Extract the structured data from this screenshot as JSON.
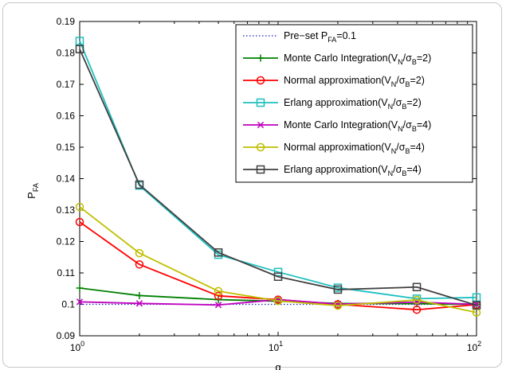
{
  "chart_data": {
    "type": "line",
    "x_scale": "log",
    "y_scale": "linear",
    "xlabel": "q",
    "ylabel_main": "P",
    "ylabel_sub": "FA",
    "xlim": [
      1,
      100
    ],
    "ylim": [
      0.09,
      0.19
    ],
    "x_ticks": [
      {
        "value": 1,
        "base": "10",
        "exp": "0"
      },
      {
        "value": 10,
        "base": "10",
        "exp": "1"
      },
      {
        "value": 100,
        "base": "10",
        "exp": "2"
      }
    ],
    "y_ticks": [
      {
        "value": 0.09,
        "label": "0.09"
      },
      {
        "value": 0.1,
        "label": "0.1"
      },
      {
        "value": 0.11,
        "label": "0.11"
      },
      {
        "value": 0.12,
        "label": "0.12"
      },
      {
        "value": 0.13,
        "label": "0.13"
      },
      {
        "value": 0.14,
        "label": "0.14"
      },
      {
        "value": 0.15,
        "label": "0.15"
      },
      {
        "value": 0.16,
        "label": "0.16"
      },
      {
        "value": 0.17,
        "label": "0.17"
      },
      {
        "value": 0.18,
        "label": "0.18"
      },
      {
        "value": 0.19,
        "label": "0.19"
      }
    ],
    "legend_position": "top-right",
    "grid": false,
    "series": [
      {
        "legend": [
          {
            "t": "Pre−set P"
          },
          {
            "t": "FA",
            "sub": true
          },
          {
            "t": "=0.1"
          }
        ],
        "color": "#1f1fb4",
        "dash": "dotted",
        "marker": "none",
        "x": [
          1,
          100
        ],
        "y": [
          0.1,
          0.1
        ]
      },
      {
        "legend": [
          {
            "t": "Monte Carlo Integration(V"
          },
          {
            "t": "N",
            "sub": true
          },
          {
            "t": "/σ"
          },
          {
            "t": "B",
            "sub": true
          },
          {
            "t": "=2)"
          }
        ],
        "color": "#008000",
        "dash": "solid",
        "marker": "plus",
        "x": [
          1,
          2,
          5,
          10,
          20,
          50,
          100
        ],
        "y": [
          0.1052,
          0.1028,
          0.1015,
          0.101,
          0.1003,
          0.1002,
          0.1
        ]
      },
      {
        "legend": [
          {
            "t": "Normal approximation(V"
          },
          {
            "t": "N",
            "sub": true
          },
          {
            "t": "/σ"
          },
          {
            "t": "B",
            "sub": true
          },
          {
            "t": "=2)"
          }
        ],
        "color": "#ff0000",
        "dash": "solid",
        "marker": "circle",
        "x": [
          1,
          2,
          5,
          10,
          20,
          50,
          100
        ],
        "y": [
          0.1262,
          0.1127,
          0.1027,
          0.1015,
          0.1,
          0.0983,
          0.0999
        ]
      },
      {
        "legend": [
          {
            "t": "Erlang approximation(V"
          },
          {
            "t": "N",
            "sub": true
          },
          {
            "t": "/σ"
          },
          {
            "t": "B",
            "sub": true
          },
          {
            "t": "=2)"
          }
        ],
        "color": "#1fbfbf",
        "dash": "solid",
        "marker": "square",
        "x": [
          1,
          2,
          5,
          10,
          20,
          50,
          100
        ],
        "y": [
          0.1838,
          0.1378,
          0.1158,
          0.1103,
          0.1053,
          0.1018,
          0.1022
        ]
      },
      {
        "legend": [
          {
            "t": "Monte Carlo Integration(V"
          },
          {
            "t": "N",
            "sub": true
          },
          {
            "t": "/σ"
          },
          {
            "t": "B",
            "sub": true
          },
          {
            "t": "=4)"
          }
        ],
        "color": "#bf00bf",
        "dash": "solid",
        "marker": "x",
        "x": [
          1,
          2,
          5,
          10,
          20,
          50,
          100
        ],
        "y": [
          0.1008,
          0.1003,
          0.0998,
          0.1015,
          0.1001,
          0.1007,
          0.1
        ]
      },
      {
        "legend": [
          {
            "t": "Normal approximation(V"
          },
          {
            "t": "N",
            "sub": true
          },
          {
            "t": "/σ"
          },
          {
            "t": "B",
            "sub": true
          },
          {
            "t": "=4)"
          }
        ],
        "color": "#bfbf00",
        "dash": "solid",
        "marker": "circle",
        "x": [
          1,
          2,
          5,
          10,
          20,
          50,
          100
        ],
        "y": [
          0.131,
          0.1163,
          0.1042,
          0.1011,
          0.0996,
          0.1014,
          0.0974
        ]
      },
      {
        "legend": [
          {
            "t": "Erlang approximation(V"
          },
          {
            "t": "N",
            "sub": true
          },
          {
            "t": "/σ"
          },
          {
            "t": "B",
            "sub": true
          },
          {
            "t": "=4)"
          }
        ],
        "color": "#404040",
        "dash": "solid",
        "marker": "square",
        "x": [
          1,
          2,
          5,
          10,
          20,
          50,
          100
        ],
        "y": [
          0.1812,
          0.1381,
          0.1165,
          0.1088,
          0.1047,
          0.1055,
          0.0997
        ]
      }
    ]
  }
}
